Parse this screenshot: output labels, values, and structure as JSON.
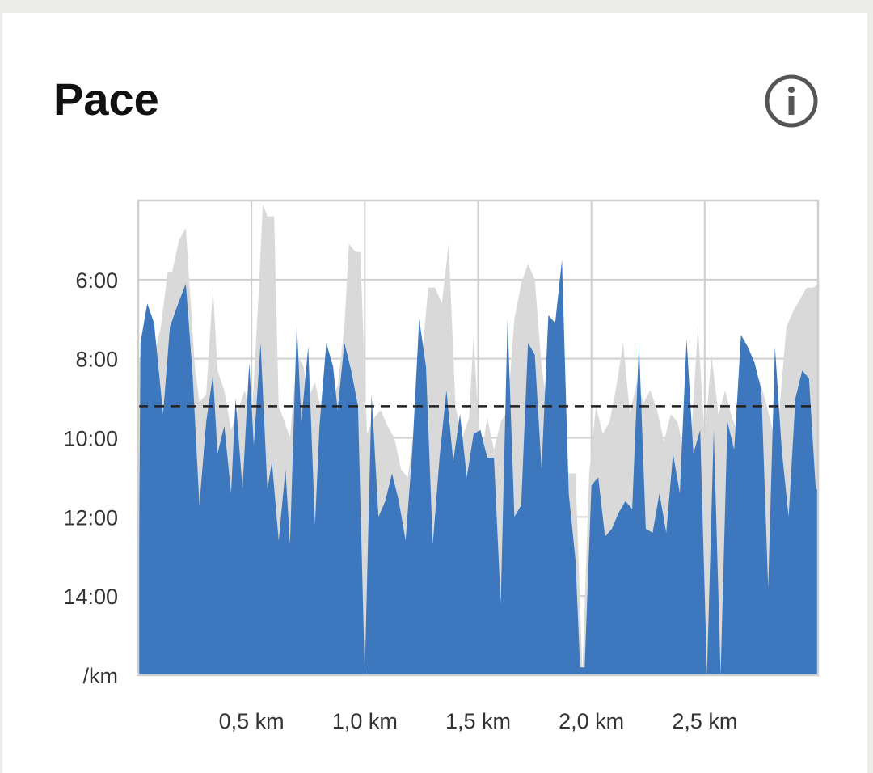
{
  "card": {
    "title": "Pace"
  },
  "icons": {
    "info": "info-icon"
  },
  "colors": {
    "background": "#ececea",
    "card": "#ffffff",
    "series_blue": "#3d77bd",
    "series_blue_highlight": "#2f80e0",
    "series_gray": "#d9d9d9",
    "average_line": "#222222",
    "grid": "#cfcfcf"
  },
  "chart_data": {
    "type": "area",
    "title": "Pace",
    "y_unit_label": "/km",
    "xlabel": "",
    "ylabel": "",
    "x_unit": "km",
    "xlim": [
      0,
      3.0
    ],
    "ylim_minutes_per_km": [
      16,
      4
    ],
    "y_inverted": true,
    "grid": true,
    "x_ticks": [
      {
        "value": 0.5,
        "label": "0,5 km"
      },
      {
        "value": 1.0,
        "label": "1,0 km"
      },
      {
        "value": 1.5,
        "label": "1,5 km"
      },
      {
        "value": 2.0,
        "label": "2,0 km"
      },
      {
        "value": 2.5,
        "label": "2,5 km"
      }
    ],
    "y_ticks": [
      {
        "value": 6,
        "label": "6:00"
      },
      {
        "value": 8,
        "label": "8:00"
      },
      {
        "value": 10,
        "label": "10:00"
      },
      {
        "value": 12,
        "label": "12:00"
      },
      {
        "value": 14,
        "label": "14:00"
      }
    ],
    "average_pace": 9.2,
    "series": [
      {
        "color": "#d9d9d9",
        "x": [
          0.0,
          0.02,
          0.06,
          0.1,
          0.13,
          0.15,
          0.18,
          0.21,
          0.25,
          0.27,
          0.3,
          0.33,
          0.35,
          0.38,
          0.41,
          0.44,
          0.47,
          0.5,
          0.53,
          0.55,
          0.57,
          0.6,
          0.62,
          0.64,
          0.67,
          0.7,
          0.73,
          0.75,
          0.78,
          0.8,
          0.83,
          0.86,
          0.88,
          0.91,
          0.93,
          0.96,
          0.98,
          1.01,
          1.04,
          1.07,
          1.1,
          1.13,
          1.16,
          1.19,
          1.22,
          1.25,
          1.28,
          1.31,
          1.34,
          1.37,
          1.4,
          1.43,
          1.46,
          1.48,
          1.51,
          1.54,
          1.57,
          1.6,
          1.63,
          1.66,
          1.69,
          1.72,
          1.75,
          1.78,
          1.81,
          1.84,
          1.87,
          1.9,
          1.93,
          1.96,
          1.99,
          2.02,
          2.05,
          2.08,
          2.11,
          2.14,
          2.17,
          2.2,
          2.23,
          2.26,
          2.29,
          2.32,
          2.35,
          2.38,
          2.41,
          2.44,
          2.47,
          2.5,
          2.53,
          2.56,
          2.59,
          2.62,
          2.65,
          2.68,
          2.71,
          2.74,
          2.77,
          2.8,
          2.83,
          2.86,
          2.89,
          2.92,
          2.95,
          2.98,
          3.0
        ],
        "y": [
          8.1,
          7.9,
          8.2,
          7.2,
          5.8,
          5.8,
          5.0,
          4.7,
          8.2,
          9.1,
          8.9,
          6.2,
          8.3,
          8.8,
          9.8,
          9.3,
          8.8,
          9.6,
          6.5,
          4.1,
          4.4,
          4.4,
          9.2,
          9.5,
          10.0,
          7.9,
          8.2,
          9.0,
          8.6,
          9.1,
          9.6,
          8.9,
          8.7,
          7.2,
          5.1,
          5.3,
          5.3,
          9.9,
          9.5,
          9.3,
          9.7,
          10.0,
          10.8,
          11.0,
          9.6,
          8.1,
          6.2,
          6.2,
          6.6,
          5.1,
          9.2,
          10.0,
          9.5,
          7.4,
          10.6,
          9.5,
          10.3,
          9.6,
          9.3,
          7.0,
          6.1,
          5.6,
          6.0,
          8.2,
          9.4,
          9.0,
          10.1,
          10.9,
          10.9,
          15.9,
          10.9,
          9.2,
          9.9,
          9.6,
          8.7,
          7.6,
          9.4,
          8.6,
          9.1,
          8.8,
          9.3,
          10.1,
          9.4,
          9.6,
          10.4,
          10.0,
          7.2,
          10.0,
          7.9,
          9.4,
          8.8,
          9.5,
          9.9,
          8.7,
          9.0,
          8.5,
          9.1,
          9.8,
          9.3,
          7.2,
          6.8,
          6.5,
          6.2,
          6.2,
          6.1
        ]
      },
      {
        "color": "#3d77bd",
        "x": [
          0.0,
          0.01,
          0.04,
          0.07,
          0.11,
          0.14,
          0.17,
          0.21,
          0.24,
          0.27,
          0.3,
          0.33,
          0.35,
          0.38,
          0.41,
          0.43,
          0.46,
          0.49,
          0.51,
          0.54,
          0.57,
          0.59,
          0.62,
          0.65,
          0.67,
          0.7,
          0.72,
          0.75,
          0.78,
          0.8,
          0.83,
          0.86,
          0.88,
          0.91,
          0.94,
          0.97,
          1.0,
          1.03,
          1.06,
          1.09,
          1.12,
          1.15,
          1.18,
          1.21,
          1.24,
          1.27,
          1.3,
          1.33,
          1.36,
          1.39,
          1.42,
          1.45,
          1.48,
          1.51,
          1.54,
          1.57,
          1.6,
          1.63,
          1.66,
          1.69,
          1.72,
          1.75,
          1.78,
          1.81,
          1.84,
          1.87,
          1.9,
          1.93,
          1.95,
          1.97,
          2.0,
          2.03,
          2.06,
          2.09,
          2.12,
          2.15,
          2.18,
          2.21,
          2.24,
          2.27,
          2.3,
          2.33,
          2.36,
          2.39,
          2.42,
          2.45,
          2.48,
          2.51,
          2.54,
          2.57,
          2.6,
          2.63,
          2.66,
          2.69,
          2.72,
          2.75,
          2.78,
          2.81,
          2.84,
          2.87,
          2.9,
          2.93,
          2.96,
          2.99,
          3.0
        ],
        "y": [
          16.0,
          7.6,
          6.6,
          7.1,
          9.4,
          7.2,
          6.7,
          6.1,
          8.4,
          11.7,
          9.6,
          8.4,
          10.4,
          9.7,
          11.4,
          9.0,
          11.3,
          8.1,
          10.2,
          7.6,
          11.3,
          10.6,
          12.6,
          10.8,
          12.7,
          7.1,
          9.6,
          7.7,
          12.2,
          9.7,
          7.6,
          8.2,
          9.3,
          7.6,
          8.3,
          9.2,
          16.0,
          8.9,
          12.0,
          11.6,
          10.9,
          11.6,
          12.6,
          10.3,
          7.0,
          8.2,
          12.7,
          10.5,
          8.8,
          10.6,
          9.4,
          11.0,
          9.9,
          9.8,
          10.5,
          10.5,
          14.2,
          7.0,
          12.0,
          11.7,
          7.6,
          7.9,
          10.8,
          6.9,
          7.1,
          5.5,
          11.4,
          13.1,
          15.8,
          15.8,
          11.2,
          11.0,
          12.5,
          12.3,
          11.9,
          11.6,
          11.8,
          7.6,
          12.3,
          12.4,
          11.4,
          12.4,
          10.4,
          11.4,
          7.5,
          10.4,
          9.8,
          16.0,
          9.8,
          16.0,
          9.6,
          10.3,
          7.4,
          7.7,
          8.1,
          8.8,
          13.8,
          7.7,
          10.3,
          12.0,
          9.0,
          8.3,
          8.5,
          11.3,
          11.3
        ]
      }
    ]
  }
}
